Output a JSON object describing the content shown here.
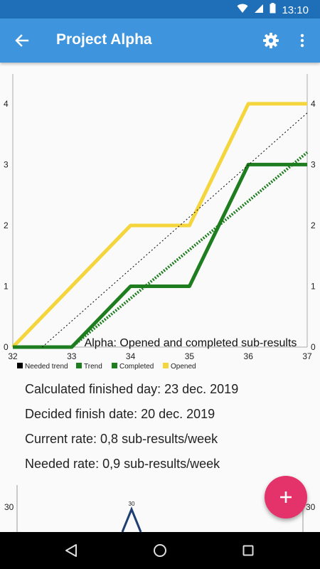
{
  "status_bar": {
    "time": "13:10"
  },
  "app_bar": {
    "title": "Project Alpha",
    "back_icon": "arrow-back-icon",
    "settings_icon": "gear-icon",
    "more_icon": "more-vert-icon"
  },
  "chart_data": [
    {
      "type": "line",
      "title": "Alpha: Opened and completed sub-results",
      "xlabel": "",
      "ylabel": "",
      "x_ticks": [
        "32",
        "33",
        "34",
        "35",
        "36",
        "37"
      ],
      "y_ticks": [
        "0",
        "1",
        "2",
        "3",
        "4"
      ],
      "xlim": [
        32,
        37
      ],
      "ylim": [
        0,
        4.35
      ],
      "grid": false,
      "legend_position": "bottom-left",
      "series": [
        {
          "name": "Needed trend",
          "color": "#000000",
          "style": "dotted-thin",
          "x": [
            32.5,
            37
          ],
          "y": [
            0,
            3.85
          ]
        },
        {
          "name": "Trend",
          "color": "#1e7d1e",
          "style": "dotted-thick",
          "x": [
            33,
            37
          ],
          "y": [
            0,
            3.2
          ]
        },
        {
          "name": "Completed",
          "color": "#1e7d1e",
          "style": "solid",
          "x": [
            32,
            33,
            34,
            35,
            36,
            37
          ],
          "y": [
            0,
            0,
            1,
            1,
            3,
            3
          ]
        },
        {
          "name": "Opened",
          "color": "#f4d53c",
          "style": "solid",
          "x": [
            32,
            34,
            35,
            36,
            37
          ],
          "y": [
            0,
            2,
            2,
            4,
            4
          ]
        }
      ]
    },
    {
      "type": "line",
      "title": "",
      "y_ticks": [
        "30"
      ],
      "data_labels": [
        "30"
      ],
      "series": [
        {
          "color": "#1f3f73",
          "x": [
            0,
            1,
            2
          ],
          "y": [
            22,
            30,
            22
          ]
        }
      ]
    }
  ],
  "info": {
    "calculated_finished_day": "Calculated finished day: 23 dec. 2019",
    "decided_finish_date": "Decided finish date: 20 dec. 2019",
    "current_rate": "Current rate: 0,8 sub-results/week",
    "needed_rate": "Needed rate: 0,9 sub-results/week"
  },
  "fab": {
    "icon": "plus-icon",
    "color": "#e4336a"
  },
  "nav_bar": {
    "back_icon": "nav-back-icon",
    "home_icon": "nav-home-icon",
    "recents_icon": "nav-recents-icon"
  },
  "colors": {
    "status_bar": "#1e6fb8",
    "app_bar": "#3e95dd",
    "opened": "#f4d53c",
    "completed": "#1e7d1e"
  }
}
